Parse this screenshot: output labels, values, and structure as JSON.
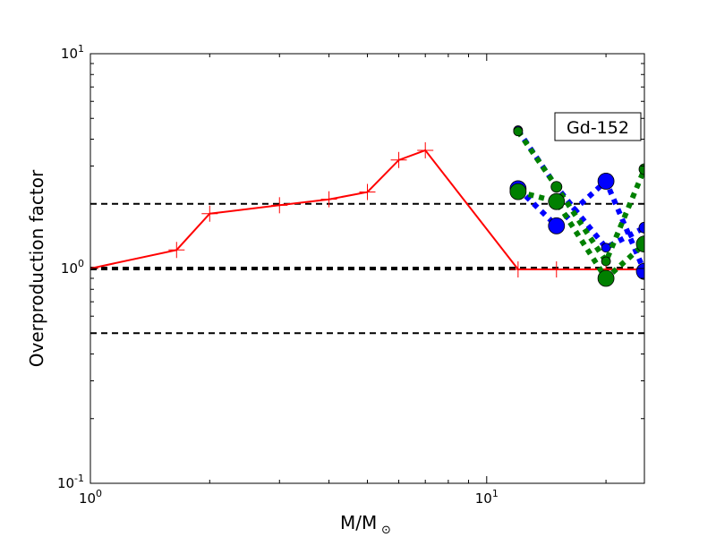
{
  "chart_data": {
    "type": "line",
    "xlabel_main": "M/M",
    "xlabel_sub": "⊙",
    "ylabel": "Overproduction factor",
    "annotation": "Gd-152",
    "xscale": "log",
    "yscale": "log",
    "xlim": [
      1,
      25
    ],
    "ylim": [
      0.1,
      10
    ],
    "x_ticks": [
      {
        "value": 1,
        "base": "10",
        "exp": "0"
      },
      {
        "value": 10,
        "base": "10",
        "exp": "1"
      }
    ],
    "y_ticks": [
      {
        "value": 0.1,
        "base": "10",
        "exp": "-1"
      },
      {
        "value": 1,
        "base": "10",
        "exp": "0"
      },
      {
        "value": 10,
        "base": "10",
        "exp": "1"
      }
    ],
    "reference_lines": [
      {
        "y": 2.0,
        "style": "dashed",
        "color": "#000000",
        "width": 2
      },
      {
        "y": 1.0,
        "style": "dashed",
        "color": "#000000",
        "width": 4
      },
      {
        "y": 0.5,
        "style": "dashed",
        "color": "#000000",
        "width": 2
      }
    ],
    "series": [
      {
        "color": "#ff0000",
        "style": "solid",
        "width": 2,
        "marker": "plus",
        "points": [
          [
            1.0,
            1.0
          ],
          [
            1.65,
            1.22
          ],
          [
            2.0,
            1.8
          ],
          [
            3.0,
            1.97
          ],
          [
            4.0,
            2.1
          ],
          [
            5.0,
            2.27
          ],
          [
            6.0,
            3.2
          ],
          [
            7.0,
            3.55
          ],
          [
            12.0,
            0.99
          ],
          [
            15.0,
            0.99
          ],
          [
            20.0,
            0.99
          ],
          [
            25.0,
            0.99
          ]
        ]
      },
      {
        "color": "#0000ff",
        "style": "dotted",
        "width": 6,
        "marker": "circle",
        "points": [
          [
            12.0,
            4.4
          ],
          [
            15.0,
            2.4
          ],
          [
            20.0,
            1.25
          ],
          [
            25.0,
            1.55
          ]
        ],
        "marker_sizes": [
          5,
          6,
          5,
          6
        ]
      },
      {
        "color": "#0000ff",
        "style": "dotted",
        "width": 6,
        "marker": "circle",
        "points": [
          [
            12.0,
            2.35
          ],
          [
            15.0,
            1.58
          ],
          [
            20.0,
            2.55
          ],
          [
            25.0,
            0.97
          ]
        ],
        "marker_sizes": [
          9,
          9,
          9,
          9
        ]
      },
      {
        "color": "#008000",
        "style": "dotted",
        "width": 6,
        "marker": "circle",
        "points": [
          [
            12.0,
            4.35
          ],
          [
            15.0,
            2.4
          ],
          [
            20.0,
            1.08
          ],
          [
            25.0,
            2.9
          ]
        ],
        "marker_sizes": [
          5,
          6,
          5,
          6
        ]
      },
      {
        "color": "#008000",
        "style": "dotted",
        "width": 6,
        "marker": "circle",
        "points": [
          [
            12.0,
            2.28
          ],
          [
            15.0,
            2.05
          ],
          [
            20.0,
            0.9
          ],
          [
            25.0,
            1.3
          ]
        ],
        "marker_sizes": [
          9,
          9,
          9,
          9
        ]
      }
    ]
  }
}
